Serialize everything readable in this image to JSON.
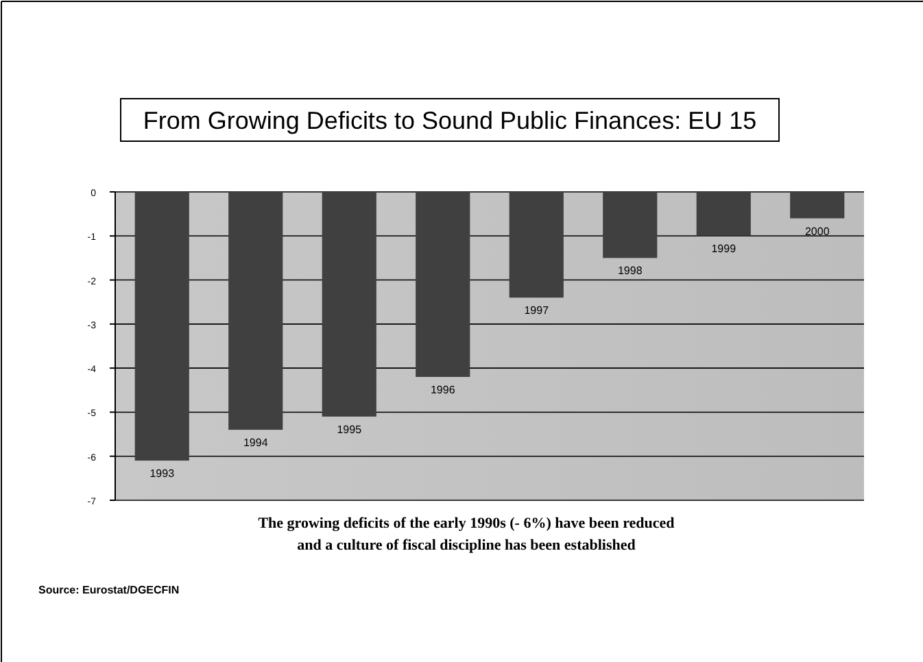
{
  "chart_data": {
    "type": "bar",
    "title": "From Growing Deficits to Sound Public Finances: EU 15",
    "categories": [
      "1993",
      "1994",
      "1995",
      "1996",
      "1997",
      "1998",
      "1999",
      "2000"
    ],
    "values": [
      -6.1,
      -5.4,
      -5.1,
      -4.2,
      -2.4,
      -1.5,
      -1.0,
      -0.6
    ],
    "color": "#404040",
    "ylim": [
      -7,
      0
    ],
    "yticks": [
      0,
      -1,
      -2,
      -3,
      -4,
      -5,
      -6,
      -7
    ],
    "grid": "y",
    "annotations": [
      "The growing deficits of the early 1990s (- 6%) have been reduced",
      "and a culture of fiscal discipline has been established",
      "Source: Eurostat/DGECFIN"
    ]
  }
}
